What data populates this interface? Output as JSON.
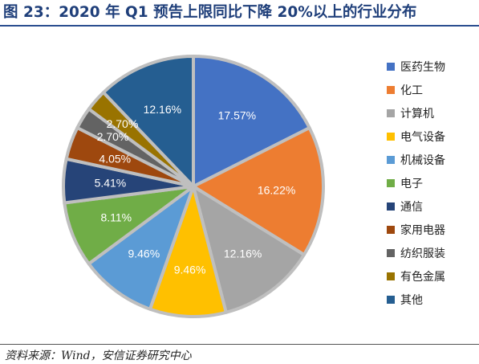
{
  "header": {
    "title": "图 23：2020 年 Q1 预告上限同比下降 20%以上的行业分布"
  },
  "footer": {
    "source": "资料来源：Wind，安信证券研究中心"
  },
  "chart_data": {
    "type": "pie",
    "unit": "%",
    "title": "",
    "legend_position": "right",
    "slices": [
      {
        "label": "医药生物",
        "value": 17.57,
        "color": "#4472c4"
      },
      {
        "label": "化工",
        "value": 16.22,
        "color": "#ed7d31"
      },
      {
        "label": "计算机",
        "value": 12.16,
        "color": "#a5a5a5"
      },
      {
        "label": "电气设备",
        "value": 9.46,
        "color": "#ffc000"
      },
      {
        "label": "机械设备",
        "value": 9.46,
        "color": "#5b9bd5"
      },
      {
        "label": "电子",
        "value": 8.11,
        "color": "#70ad47"
      },
      {
        "label": "通信",
        "value": 5.41,
        "color": "#264478"
      },
      {
        "label": "家用电器",
        "value": 4.05,
        "color": "#9e480e"
      },
      {
        "label": "纺织服装",
        "value": 2.7,
        "color": "#636363"
      },
      {
        "label": "有色金属",
        "value": 2.7,
        "color": "#997300"
      },
      {
        "label": "其他",
        "value": 12.16,
        "color": "#255e91"
      }
    ],
    "data_labels": [
      "17.57%",
      "16.22%",
      "12.16%",
      "9.46%",
      "9.46%",
      "8.11%",
      "5.41%",
      "4.05%",
      "2.70%",
      "2.70%",
      "12.16%"
    ]
  }
}
